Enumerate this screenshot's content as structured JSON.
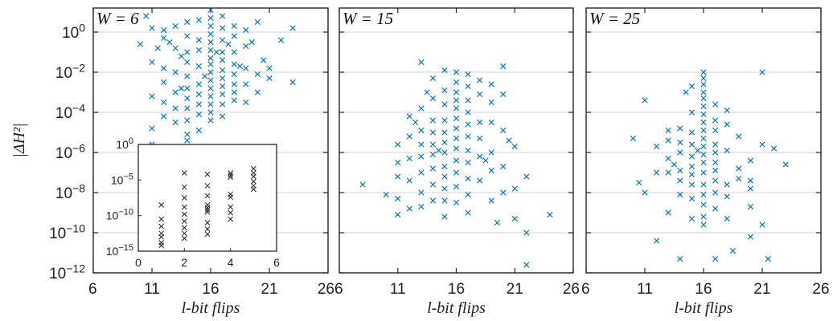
{
  "chart_data": [
    {
      "type": "scatter",
      "title": "W = 6",
      "xlabel": "l-bit flips",
      "ylabel": "|ΔH²|",
      "xlim": [
        6,
        26
      ],
      "ylim_log10": [
        -12,
        1.2
      ],
      "yscale": "log",
      "xticks": [
        "6",
        "11",
        "16",
        "21",
        "26"
      ],
      "yticks": [
        "10^0",
        "10^-2",
        "10^-4",
        "10^-6",
        "10^-8",
        "10^-10",
        "10^-12"
      ],
      "grid": "horizontal",
      "marker": "x",
      "color": "#0072BD",
      "points": [
        [
          10,
          -0.6
        ],
        [
          10.5,
          0.8
        ],
        [
          11,
          0.2
        ],
        [
          11,
          -1.5
        ],
        [
          11,
          -3.2
        ],
        [
          11,
          -4.8
        ],
        [
          11,
          -5.6
        ],
        [
          11.5,
          -0.8
        ],
        [
          12,
          0.1
        ],
        [
          12,
          -0.3
        ],
        [
          12,
          -1.8
        ],
        [
          12,
          -2.5
        ],
        [
          12,
          -3.5
        ],
        [
          12,
          -4.2
        ],
        [
          12.5,
          -0.5
        ],
        [
          13,
          0.3
        ],
        [
          13,
          -0.8
        ],
        [
          13,
          -2.0
        ],
        [
          13,
          -3.0
        ],
        [
          13,
          -3.8
        ],
        [
          13,
          -4.5
        ],
        [
          13.5,
          -1.2
        ],
        [
          13.5,
          -2.8
        ],
        [
          14,
          0.5
        ],
        [
          14,
          -0.2
        ],
        [
          14,
          -1.0
        ],
        [
          14,
          -1.5
        ],
        [
          14,
          -2.2
        ],
        [
          14,
          -2.8
        ],
        [
          14,
          -3.3
        ],
        [
          14,
          -3.8
        ],
        [
          14,
          -4.4
        ],
        [
          14,
          -5.1
        ],
        [
          14,
          -5.4
        ],
        [
          15,
          0.6
        ],
        [
          15,
          -0.4
        ],
        [
          15,
          -0.9
        ],
        [
          15,
          -1.7
        ],
        [
          15,
          -2.6
        ],
        [
          15,
          -3.1
        ],
        [
          15,
          -3.6
        ],
        [
          15,
          -4.1
        ],
        [
          15,
          -4.9
        ],
        [
          15.5,
          -2.2
        ],
        [
          16,
          1.1
        ],
        [
          16,
          0.7
        ],
        [
          16,
          0.3
        ],
        [
          16,
          -0.1
        ],
        [
          16,
          -0.5
        ],
        [
          16,
          -0.9
        ],
        [
          16,
          -1.3
        ],
        [
          16,
          -1.6
        ],
        [
          16,
          -2.0
        ],
        [
          16,
          -2.4
        ],
        [
          16,
          -2.8
        ],
        [
          16,
          -3.2
        ],
        [
          16,
          -3.6
        ],
        [
          16,
          -4.0
        ],
        [
          16,
          -4.4
        ],
        [
          16.5,
          -1.0
        ],
        [
          17,
          0.8
        ],
        [
          17,
          0.2
        ],
        [
          17,
          -0.4
        ],
        [
          17,
          -1.0
        ],
        [
          17,
          -1.4
        ],
        [
          17,
          -1.9
        ],
        [
          17,
          -2.3
        ],
        [
          17,
          -2.7
        ],
        [
          17,
          -3.1
        ],
        [
          17,
          -3.6
        ],
        [
          17,
          -4.2
        ],
        [
          17.5,
          -0.6
        ],
        [
          18,
          0.3
        ],
        [
          18,
          -0.2
        ],
        [
          18,
          -1.0
        ],
        [
          18,
          -1.6
        ],
        [
          18,
          -2.1
        ],
        [
          18,
          -2.6
        ],
        [
          18,
          -3.0
        ],
        [
          18,
          -3.4
        ],
        [
          18.5,
          -1.7
        ],
        [
          19,
          0.1
        ],
        [
          19,
          -0.7
        ],
        [
          19,
          -1.8
        ],
        [
          19,
          -2.6
        ],
        [
          19,
          -3.5
        ],
        [
          19.5,
          -0.5
        ],
        [
          20,
          0.5
        ],
        [
          20,
          -2.1
        ],
        [
          20,
          -3.0
        ],
        [
          20.5,
          -1.4
        ],
        [
          21,
          -1.8
        ],
        [
          21,
          -2.3
        ],
        [
          22,
          -0.4
        ],
        [
          23,
          0.2
        ],
        [
          23,
          -2.5
        ]
      ],
      "inset": {
        "xlim": [
          0,
          6
        ],
        "ylim_log10": [
          -15,
          0
        ],
        "xticks": [
          "0",
          "2",
          "4",
          "6"
        ],
        "yticks": [
          "10^0",
          "10^-5",
          "10^-10",
          "10^-15"
        ],
        "marker": "x",
        "color": "#222222",
        "points": [
          [
            1,
            -8.5
          ],
          [
            1,
            -10.5
          ],
          [
            1,
            -11.5
          ],
          [
            1,
            -12.5
          ],
          [
            1,
            -13.0
          ],
          [
            1,
            -13.8
          ],
          [
            1,
            -14.2
          ],
          [
            2,
            -4.0
          ],
          [
            2,
            -6.0
          ],
          [
            2,
            -7.5
          ],
          [
            2,
            -8.8
          ],
          [
            2,
            -9.8
          ],
          [
            2,
            -10.8
          ],
          [
            2,
            -11.7
          ],
          [
            2,
            -12.5
          ],
          [
            2,
            -13.2
          ],
          [
            3,
            -4.2
          ],
          [
            3,
            -5.8
          ],
          [
            3,
            -7.2
          ],
          [
            3,
            -8.5
          ],
          [
            3,
            -8.9
          ],
          [
            3,
            -9.2
          ],
          [
            3,
            -9.5
          ],
          [
            3,
            -11.0
          ],
          [
            3,
            -11.9
          ],
          [
            3,
            -12.6
          ],
          [
            4,
            -4.0
          ],
          [
            4,
            -4.3
          ],
          [
            4,
            -4.6
          ],
          [
            4,
            -7.0
          ],
          [
            4,
            -7.4
          ],
          [
            4,
            -8.8
          ],
          [
            4,
            -9.6
          ],
          [
            4,
            -10.5
          ],
          [
            5,
            -3.4
          ],
          [
            5,
            -4.0
          ],
          [
            5,
            -4.5
          ],
          [
            5,
            -5.2
          ],
          [
            5,
            -5.8
          ],
          [
            5,
            -6.3
          ]
        ]
      }
    },
    {
      "type": "scatter",
      "title": "W = 15",
      "xlabel": "l-bit flips",
      "ylabel": "",
      "xlim": [
        6,
        26
      ],
      "ylim_log10": [
        -12,
        1.2
      ],
      "yscale": "log",
      "xticks": [
        "6",
        "11",
        "16",
        "21",
        "26"
      ],
      "grid": "horizontal",
      "marker": "x",
      "color": "#0072BD",
      "points": [
        [
          8,
          -7.6
        ],
        [
          10,
          -8.1
        ],
        [
          11,
          -5.6
        ],
        [
          11,
          -6.5
        ],
        [
          11,
          -7.2
        ],
        [
          11,
          -8.3
        ],
        [
          11,
          -9.1
        ],
        [
          12,
          -4.2
        ],
        [
          12,
          -5.2
        ],
        [
          12,
          -6.3
        ],
        [
          12,
          -7.4
        ],
        [
          12,
          -8.8
        ],
        [
          12.5,
          -4.5
        ],
        [
          13,
          -1.5
        ],
        [
          13,
          -3.8
        ],
        [
          13,
          -4.9
        ],
        [
          13,
          -5.6
        ],
        [
          13,
          -6.2
        ],
        [
          13,
          -7.0
        ],
        [
          13,
          -8.0
        ],
        [
          13,
          -8.7
        ],
        [
          13.5,
          -3.0
        ],
        [
          14,
          -2.3
        ],
        [
          14,
          -3.3
        ],
        [
          14,
          -4.4
        ],
        [
          14,
          -5.0
        ],
        [
          14,
          -5.6
        ],
        [
          14,
          -6.1
        ],
        [
          14,
          -6.8
        ],
        [
          14,
          -7.6
        ],
        [
          14,
          -8.4
        ],
        [
          14.5,
          -5.9
        ],
        [
          15,
          -1.9
        ],
        [
          15,
          -2.9
        ],
        [
          15,
          -3.6
        ],
        [
          15,
          -4.4
        ],
        [
          15,
          -5.0
        ],
        [
          15,
          -5.5
        ],
        [
          15,
          -6.0
        ],
        [
          15,
          -6.7
        ],
        [
          15,
          -7.2
        ],
        [
          15,
          -7.8
        ],
        [
          15,
          -8.4
        ],
        [
          15,
          -9.2
        ],
        [
          16,
          -2.0
        ],
        [
          16,
          -2.5
        ],
        [
          16,
          -3.0
        ],
        [
          16,
          -3.4
        ],
        [
          16,
          -3.8
        ],
        [
          16,
          -4.3
        ],
        [
          16,
          -4.8
        ],
        [
          16,
          -5.3
        ],
        [
          16,
          -5.8
        ],
        [
          16,
          -6.4
        ],
        [
          16,
          -7.0
        ],
        [
          16,
          -7.7
        ],
        [
          16,
          -8.5
        ],
        [
          17,
          -2.1
        ],
        [
          17,
          -2.7
        ],
        [
          17,
          -3.4
        ],
        [
          17,
          -4.0
        ],
        [
          17,
          -4.6
        ],
        [
          17,
          -5.2
        ],
        [
          17,
          -5.9
        ],
        [
          17,
          -6.5
        ],
        [
          17,
          -7.3
        ],
        [
          17,
          -8.1
        ],
        [
          17,
          -9.0
        ],
        [
          18,
          -2.4
        ],
        [
          18,
          -3.1
        ],
        [
          18,
          -4.5
        ],
        [
          18,
          -5.3
        ],
        [
          18,
          -6.2
        ],
        [
          18,
          -7.4
        ],
        [
          18.5,
          -6.4
        ],
        [
          19,
          -2.6
        ],
        [
          19,
          -3.5
        ],
        [
          19,
          -4.5
        ],
        [
          19,
          -6.0
        ],
        [
          19,
          -6.9
        ],
        [
          19,
          -8.4
        ],
        [
          19.5,
          -9.5
        ],
        [
          20,
          -1.7
        ],
        [
          20,
          -3.1
        ],
        [
          20,
          -4.9
        ],
        [
          20,
          -6.7
        ],
        [
          20,
          -8.0
        ],
        [
          20.5,
          -5.4
        ],
        [
          21,
          -5.7
        ],
        [
          21,
          -7.8
        ],
        [
          21,
          -9.3
        ],
        [
          22,
          -7.2
        ],
        [
          22,
          -10.0
        ],
        [
          22,
          -11.6
        ],
        [
          24,
          -9.1
        ]
      ]
    },
    {
      "type": "scatter",
      "title": "W = 25",
      "xlabel": "l-bit flips",
      "ylabel": "",
      "xlim": [
        6,
        26
      ],
      "ylim_log10": [
        -12,
        1.2
      ],
      "yscale": "log",
      "xticks": [
        "6",
        "11",
        "16",
        "21",
        "26"
      ],
      "grid": "horizontal",
      "marker": "x",
      "color": "#0072BD",
      "points": [
        [
          10,
          -5.3
        ],
        [
          10.5,
          -7.5
        ],
        [
          11,
          -3.4
        ],
        [
          11,
          -8.0
        ],
        [
          12,
          -5.7
        ],
        [
          12,
          -7.0
        ],
        [
          12,
          -10.4
        ],
        [
          13,
          -4.9
        ],
        [
          13,
          -5.4
        ],
        [
          13,
          -6.3
        ],
        [
          13,
          -7.0
        ],
        [
          13,
          -9.0
        ],
        [
          13.5,
          -6.6
        ],
        [
          14,
          -4.8
        ],
        [
          14,
          -5.5
        ],
        [
          14,
          -6.0
        ],
        [
          14,
          -6.9
        ],
        [
          14,
          -7.4
        ],
        [
          14,
          -8.1
        ],
        [
          14,
          -11.3
        ],
        [
          14.5,
          -3.0
        ],
        [
          15,
          -2.7
        ],
        [
          15,
          -4.0
        ],
        [
          15,
          -5.0
        ],
        [
          15,
          -5.6
        ],
        [
          15,
          -6.2
        ],
        [
          15,
          -6.7
        ],
        [
          15,
          -7.1
        ],
        [
          15,
          -7.6
        ],
        [
          15,
          -8.3
        ],
        [
          15,
          -9.3
        ],
        [
          15.5,
          -5.9
        ],
        [
          16,
          -2.0
        ],
        [
          16,
          -2.3
        ],
        [
          16,
          -2.6
        ],
        [
          16,
          -3.0
        ],
        [
          16,
          -3.3
        ],
        [
          16,
          -3.7
        ],
        [
          16,
          -4.1
        ],
        [
          16,
          -4.5
        ],
        [
          16,
          -4.9
        ],
        [
          16,
          -5.3
        ],
        [
          16,
          -5.7
        ],
        [
          16,
          -6.1
        ],
        [
          16,
          -6.5
        ],
        [
          16,
          -7.0
        ],
        [
          16,
          -7.6
        ],
        [
          16,
          -8.1
        ],
        [
          16,
          -8.6
        ],
        [
          16,
          -9.2
        ],
        [
          16,
          -9.6
        ],
        [
          17,
          -3.6
        ],
        [
          17,
          -4.4
        ],
        [
          17,
          -4.9
        ],
        [
          17,
          -5.6
        ],
        [
          17,
          -6.0
        ],
        [
          17,
          -6.5
        ],
        [
          17,
          -6.9
        ],
        [
          17,
          -7.4
        ],
        [
          17,
          -8.0
        ],
        [
          17,
          -8.8
        ],
        [
          17,
          -11.3
        ],
        [
          18,
          -3.9
        ],
        [
          18,
          -4.6
        ],
        [
          18,
          -5.9
        ],
        [
          18,
          -7.6
        ],
        [
          18,
          -8.2
        ],
        [
          18,
          -9.3
        ],
        [
          18.5,
          -10.9
        ],
        [
          19,
          -5.2
        ],
        [
          19,
          -6.8
        ],
        [
          19,
          -7.3
        ],
        [
          20,
          -6.4
        ],
        [
          20,
          -7.4
        ],
        [
          20,
          -7.8
        ],
        [
          20,
          -8.7
        ],
        [
          20,
          -10.2
        ],
        [
          21,
          -2.0
        ],
        [
          21,
          -5.6
        ],
        [
          21,
          -9.6
        ],
        [
          21.5,
          -11.3
        ],
        [
          22,
          -5.8
        ],
        [
          23,
          -6.6
        ]
      ]
    }
  ]
}
